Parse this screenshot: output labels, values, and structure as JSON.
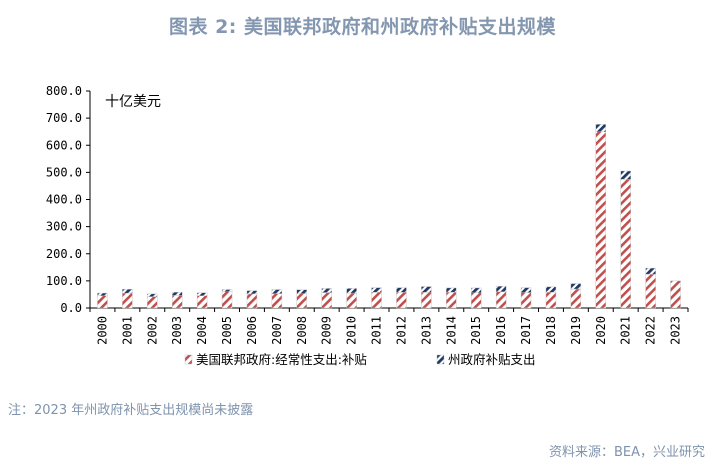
{
  "title": "图表 2:  美国联邦政府和州政府补贴支出规模",
  "note": "注：2023 年州政府补贴支出规模尚未披露",
  "source": "资料来源：BEA，兴业研究",
  "chart_data": {
    "type": "bar",
    "stacked": true,
    "unit_label": "十亿美元",
    "categories": [
      "2000",
      "2001",
      "2002",
      "2003",
      "2004",
      "2005",
      "2006",
      "2007",
      "2008",
      "2009",
      "2010",
      "2011",
      "2012",
      "2013",
      "2014",
      "2015",
      "2016",
      "2017",
      "2018",
      "2019",
      "2020",
      "2021",
      "2022",
      "2023"
    ],
    "series": [
      {
        "name": "美国联邦政府:经常性支出:补贴",
        "color": "#c0504d",
        "pattern": "red-diagonal-hatch",
        "values": [
          45,
          55,
          42,
          47,
          45,
          60,
          52,
          53,
          53,
          57,
          55,
          58,
          58,
          58,
          58,
          56,
          60,
          57,
          58,
          70,
          650,
          475,
          125,
          100
        ]
      },
      {
        "name": "州政府补贴支出",
        "color": "#1f3864",
        "pattern": "navy-diagonal-hatch",
        "values": [
          10,
          14,
          10,
          11,
          11,
          8,
          12,
          15,
          14,
          15,
          17,
          17,
          17,
          21,
          16,
          18,
          20,
          18,
          20,
          20,
          27,
          30,
          22,
          0
        ]
      }
    ],
    "ylim": [
      0,
      800
    ],
    "yticks": [
      "0.0",
      "100.0",
      "200.0",
      "300.0",
      "400.0",
      "500.0",
      "600.0",
      "700.0",
      "800.0"
    ],
    "grid": false,
    "legend_position": "bottom"
  }
}
